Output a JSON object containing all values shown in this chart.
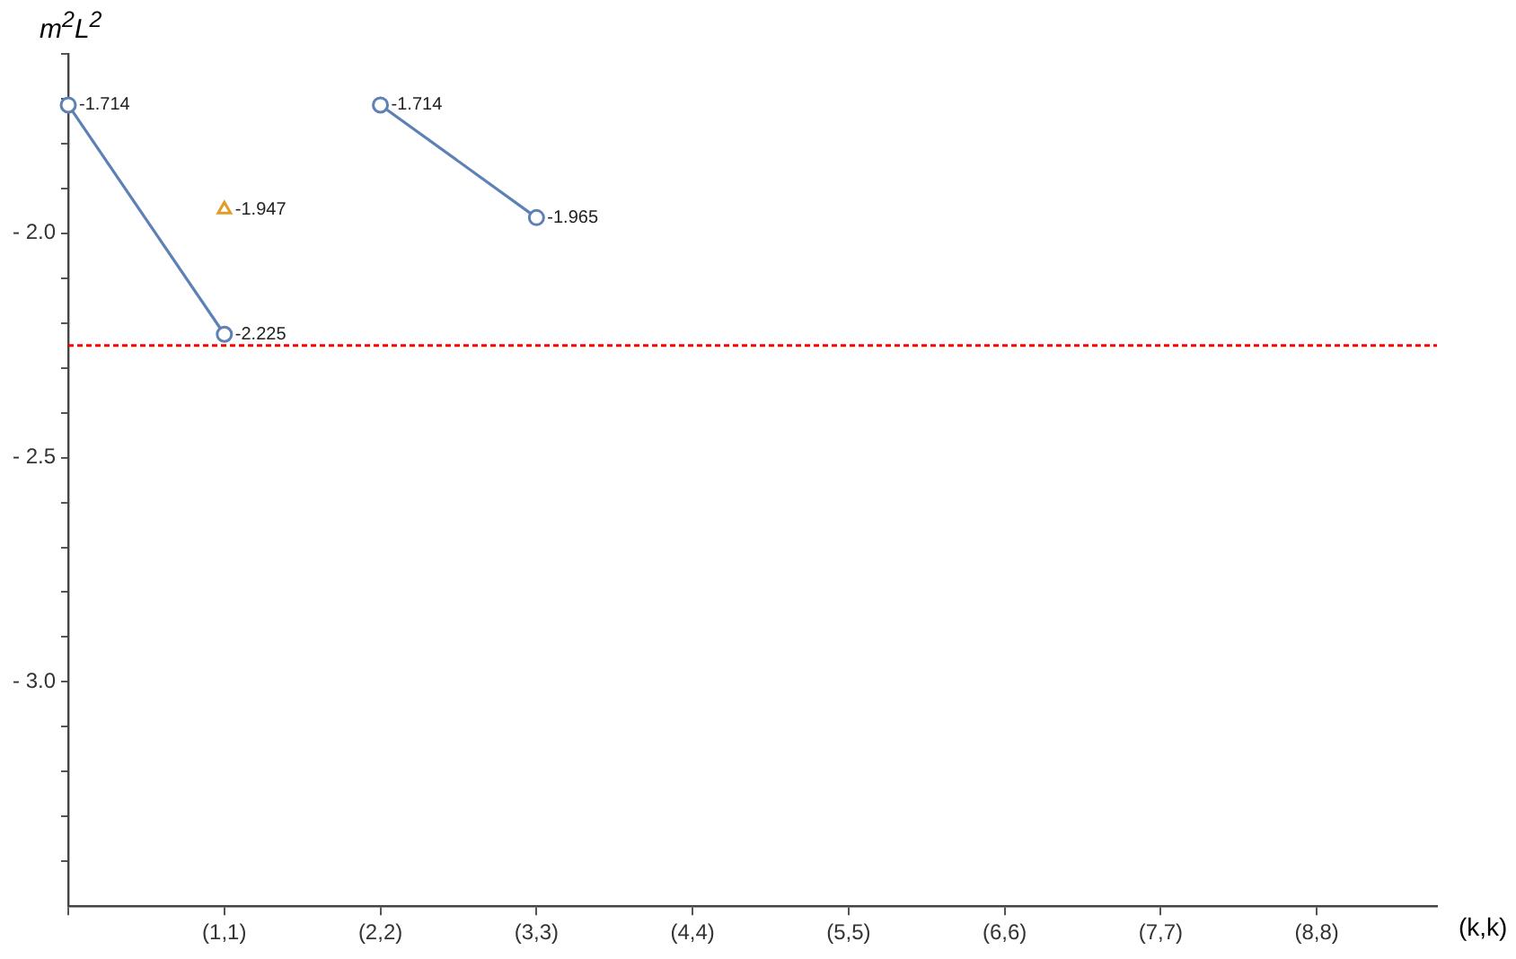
{
  "chart_data": {
    "type": "line",
    "xlabel": "(k,k)",
    "ylabel": "m$^{2}$L$^{2}$",
    "categories": [
      null,
      "(1,1)",
      "(2,2)",
      "(3,3)",
      "(4,4)",
      "(5,5)",
      "(6,6)",
      "(7,7)",
      "(8,8)"
    ],
    "ylim": [
      -3.5,
      -1.6
    ],
    "yticks": [
      {
        "value": -1.6,
        "label": null
      },
      {
        "value": -1.7,
        "label": null
      },
      {
        "value": -1.8,
        "label": null
      },
      {
        "value": -1.9,
        "label": null
      },
      {
        "value": -2.0,
        "label": "- 2.0"
      },
      {
        "value": -2.1,
        "label": null
      },
      {
        "value": -2.2,
        "label": null
      },
      {
        "value": -2.3,
        "label": null
      },
      {
        "value": -2.4,
        "label": null
      },
      {
        "value": -2.5,
        "label": "- 2.5"
      },
      {
        "value": -2.6,
        "label": null
      },
      {
        "value": -2.7,
        "label": null
      },
      {
        "value": -2.8,
        "label": null
      },
      {
        "value": -2.9,
        "label": null
      },
      {
        "value": -3.0,
        "label": "- 3.0"
      },
      {
        "value": -3.1,
        "label": null
      },
      {
        "value": -3.2,
        "label": null
      },
      {
        "value": -3.3,
        "label": null
      },
      {
        "value": -3.4,
        "label": null
      }
    ],
    "grid": false,
    "legend": false,
    "data_labels": true,
    "series": [
      {
        "values": [
          -1.714,
          -2.225,
          null,
          null,
          null,
          null,
          null,
          null,
          null
        ],
        "color": "#5e81b5",
        "marker": "circle",
        "line_style": "solid"
      },
      {
        "values": [
          null,
          null,
          -1.714,
          -1.965,
          null,
          null,
          null,
          null,
          null
        ],
        "color": "#5e81b5",
        "marker": "circle",
        "line_style": "solid"
      },
      {
        "type": "scatter",
        "values": [
          null,
          -1.947,
          null,
          null,
          null,
          null,
          null,
          null,
          null
        ],
        "color": "#e19c24",
        "marker": "triangle"
      }
    ],
    "ref_lines": [
      {
        "axis": "y",
        "value": -2.25,
        "color": "#ff0000",
        "line_style": "dashed"
      }
    ]
  }
}
